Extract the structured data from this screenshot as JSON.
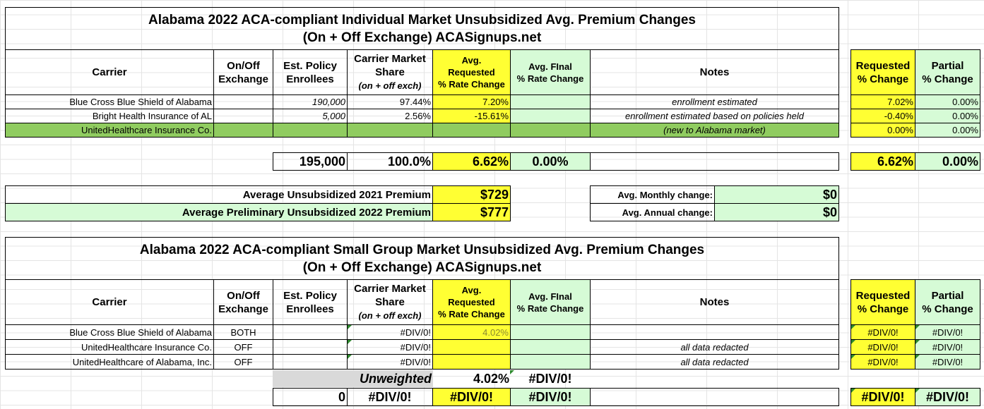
{
  "individual": {
    "title_line1": "Alabama 2022 ACA-compliant Individual Market Unsubsidized Avg. Premium Changes",
    "title_line2": "(On + Off Exchange) ACASignups.net",
    "headers": {
      "carrier": "Carrier",
      "onoff_1": "On/Off",
      "onoff_2": "Exchange",
      "enroll_1": "Est. Policy",
      "enroll_2": "Enrollees",
      "share_1": "Carrier Market",
      "share_2": "Share",
      "share_3": "(on + off exch)",
      "req_1": "Avg.",
      "req_2": "Requested",
      "req_3": "% Rate Change",
      "final_1": "Avg. FInal",
      "final_2": "% Rate Change",
      "notes": "Notes",
      "requested_1": "Requested",
      "requested_2": "% Change",
      "partial_1": "Partial",
      "partial_2": "% Change"
    },
    "rows": [
      {
        "carrier": "Blue Cross Blue Shield of Alabama",
        "onoff": "",
        "enrollees": "190,000",
        "share": "97.44%",
        "requested": "7.20%",
        "final": "",
        "notes": "enrollment estimated",
        "req_change": "7.02%",
        "partial": "0.00%"
      },
      {
        "carrier": "Bright Health Insurance of AL",
        "onoff": "",
        "enrollees": "5,000",
        "share": "2.56%",
        "requested": "-15.61%",
        "final": "",
        "notes": "enrollment estimated based on policies held",
        "req_change": "-0.40%",
        "partial": "0.00%"
      },
      {
        "carrier": "UnitedHealthcare Insurance Co.",
        "onoff": "",
        "enrollees": "",
        "share": "",
        "requested": "",
        "final": "",
        "notes": "(new to Alabama market)",
        "req_change": "0.00%",
        "partial": "0.00%"
      }
    ],
    "totals": {
      "enrollees": "195,000",
      "share": "100.0%",
      "requested": "6.62%",
      "final": "0.00%",
      "req_change": "6.62%",
      "partial": "0.00%"
    },
    "premium": {
      "label_2021": "Average Unsubsidized 2021 Premium",
      "value_2021": "$729",
      "label_2022": "Average Preliminary Unsubsidized 2022 Premium",
      "value_2022": "$777",
      "monthly_label": "Avg. Monthly change:",
      "monthly_value": "$0",
      "annual_label": "Avg. Annual change:",
      "annual_value": "$0"
    }
  },
  "small_group": {
    "title_line1": "Alabama 2022 ACA-compliant Small Group Market Unsubsidized Avg. Premium Changes",
    "title_line2": "(On + Off Exchange) ACASignups.net",
    "rows": [
      {
        "carrier": "Blue Cross Blue Shield of Alabama",
        "onoff": "BOTH",
        "enrollees": "",
        "share": "#DIV/0!",
        "requested": "4.02%",
        "final": "",
        "notes": "",
        "req_change": "#DIV/0!",
        "partial": "#DIV/0!"
      },
      {
        "carrier": "UnitedHealthcare Insurance Co.",
        "onoff": "OFF",
        "enrollees": "",
        "share": "#DIV/0!",
        "requested": "",
        "final": "",
        "notes": "all data redacted",
        "req_change": "#DIV/0!",
        "partial": "#DIV/0!"
      },
      {
        "carrier": "UnitedHealthcare of Alabama, Inc.",
        "onoff": "OFF",
        "enrollees": "",
        "share": "#DIV/0!",
        "requested": "",
        "final": "",
        "notes": "all data redacted",
        "req_change": "#DIV/0!",
        "partial": "#DIV/0!"
      }
    ],
    "unweighted": {
      "label": "Unweighted",
      "requested": "4.02%",
      "final": "#DIV/0!"
    },
    "totals": {
      "enrollees": "0",
      "share": "#DIV/0!",
      "requested": "#DIV/0!",
      "final": "#DIV/0!",
      "req_change": "#DIV/0!",
      "partial": "#DIV/0!"
    }
  },
  "colors": {
    "yellow": "#ffff33",
    "light_green": "#d6fbd6",
    "dark_green": "#90cc60",
    "gray": "#d9d9d9"
  }
}
